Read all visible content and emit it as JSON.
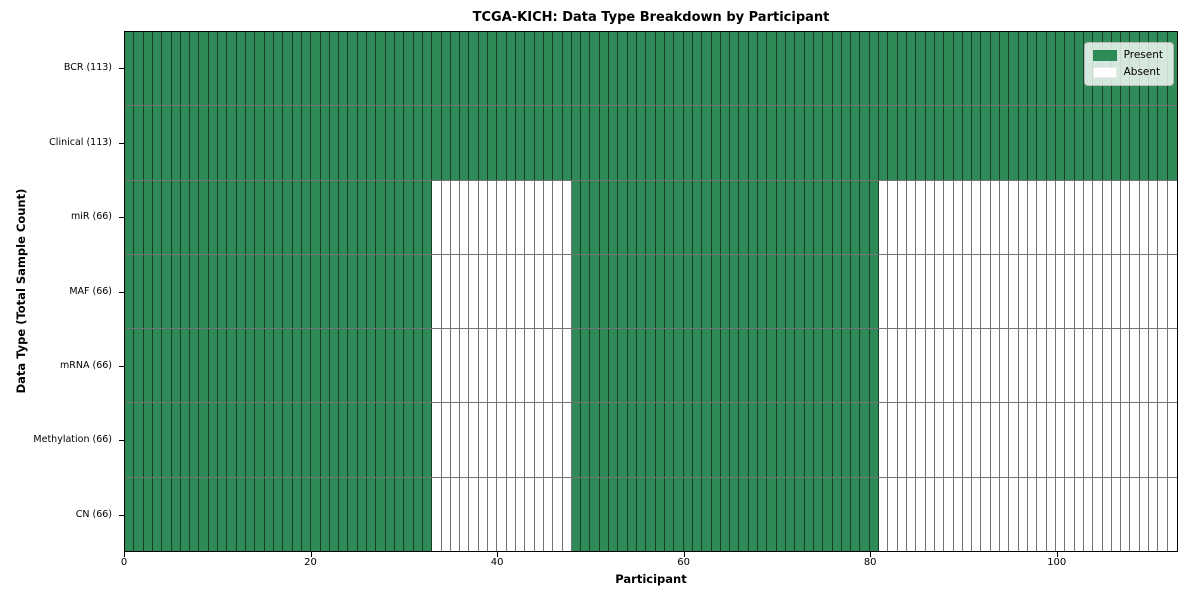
{
  "title": "TCGA-KICH: Data Type Breakdown by Participant",
  "colors": {
    "present": "#2e8b57",
    "absent": "#ffffff",
    "grid_line": "rgba(0,0,0,0.55)",
    "spine": "#000000",
    "legend_border": "#b7b7b7"
  },
  "chart_data": {
    "type": "heatmap",
    "title": "TCGA-KICH: Data Type Breakdown by Participant",
    "xlabel": "Participant",
    "ylabel": "Data Type (Total Sample Count)",
    "xlim": [
      0,
      113
    ],
    "x_ticks": [
      0,
      20,
      40,
      60,
      80,
      100
    ],
    "n_participants": 113,
    "grid": true,
    "legend_position": "upper right",
    "legend_entries": [
      {
        "label": "Present",
        "color": "#2e8b57"
      },
      {
        "label": "Absent",
        "color": "#ffffff"
      }
    ],
    "rows": [
      {
        "label": "BCR (113)",
        "total": 113,
        "present_segments": [
          [
            0,
            113
          ]
        ]
      },
      {
        "label": "Clinical (113)",
        "total": 113,
        "present_segments": [
          [
            0,
            113
          ]
        ]
      },
      {
        "label": "miR (66)",
        "total": 66,
        "present_segments": [
          [
            0,
            33
          ],
          [
            48,
            81
          ]
        ]
      },
      {
        "label": "MAF (66)",
        "total": 66,
        "present_segments": [
          [
            0,
            33
          ],
          [
            48,
            81
          ]
        ]
      },
      {
        "label": "mRNA (66)",
        "total": 66,
        "present_segments": [
          [
            0,
            33
          ],
          [
            48,
            81
          ]
        ]
      },
      {
        "label": "Methylation (66)",
        "total": 66,
        "present_segments": [
          [
            0,
            33
          ],
          [
            48,
            81
          ]
        ]
      },
      {
        "label": "CN (66)",
        "total": 66,
        "present_segments": [
          [
            0,
            33
          ],
          [
            48,
            81
          ]
        ]
      }
    ]
  }
}
